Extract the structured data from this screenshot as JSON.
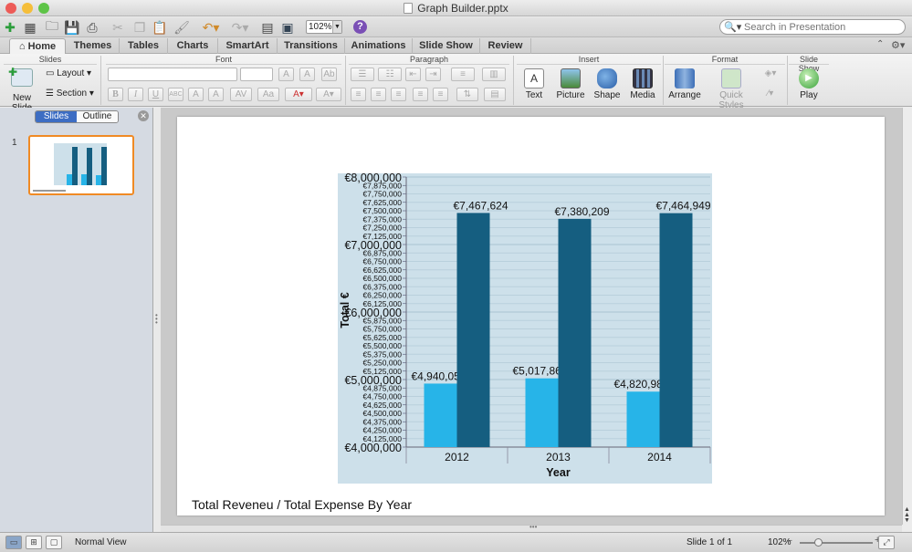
{
  "window": {
    "title": "Graph Builder.pptx",
    "traffic_lights": [
      "#ed5b57",
      "#f5be3a",
      "#5ec447"
    ]
  },
  "toolbar": {
    "zoom_value": "102%",
    "search_placeholder": "Search in Presentation"
  },
  "tabs": [
    {
      "label": "Home",
      "active": true
    },
    {
      "label": "Themes"
    },
    {
      "label": "Tables"
    },
    {
      "label": "Charts"
    },
    {
      "label": "SmartArt"
    },
    {
      "label": "Transitions"
    },
    {
      "label": "Animations"
    },
    {
      "label": "Slide Show"
    },
    {
      "label": "Review"
    }
  ],
  "ribbon": {
    "groups": [
      "Slides",
      "Font",
      "Paragraph",
      "Insert",
      "Format",
      "Slide Show"
    ],
    "new_slide": "New Slide",
    "layout": "Layout",
    "section": "Section",
    "insert_buttons": [
      "Text",
      "Picture",
      "Shape",
      "Media"
    ],
    "arrange": "Arrange",
    "quick_styles": "Quick Styles",
    "play": "Play",
    "font_buttons": [
      "B",
      "I",
      "U",
      "ABC",
      "A",
      "A"
    ],
    "colors": {
      "accent_light": "#27b4e8",
      "accent_dark": "#155e80",
      "selection": "#f08a24"
    }
  },
  "left_pane": {
    "tab_slides": "Slides",
    "tab_outline": "Outline",
    "slide_number": "1"
  },
  "slide": {
    "caption": "Total Reveneu / Total Expense By Year"
  },
  "chart_data": {
    "type": "bar",
    "categories": [
      "2012",
      "2013",
      "2014"
    ],
    "series": [
      {
        "values": [
          4940054,
          5017865,
          4820988
        ],
        "color": "#27b4e8"
      },
      {
        "values": [
          7467624,
          7380209,
          7464949
        ],
        "color": "#155e80"
      }
    ],
    "data_labels": [
      [
        "€4,940,054",
        "€5,017,865",
        "€4,820,988"
      ],
      [
        "€7,467,624",
        "€7,380,209",
        "€7,464,949"
      ]
    ],
    "xlabel": "Year",
    "ylabel": "Total €",
    "ylim": [
      4000000,
      8000000
    ],
    "major_ticks": [
      "€4,000,000",
      "€5,000,000",
      "€6,000,000",
      "€7,000,000",
      "€8,000,000"
    ],
    "minor_step": 125000,
    "grid": true,
    "plot_bg": "#cde0ea"
  },
  "status": {
    "view": "Normal View",
    "slide_info": "Slide 1 of 1",
    "zoom": "102%"
  }
}
